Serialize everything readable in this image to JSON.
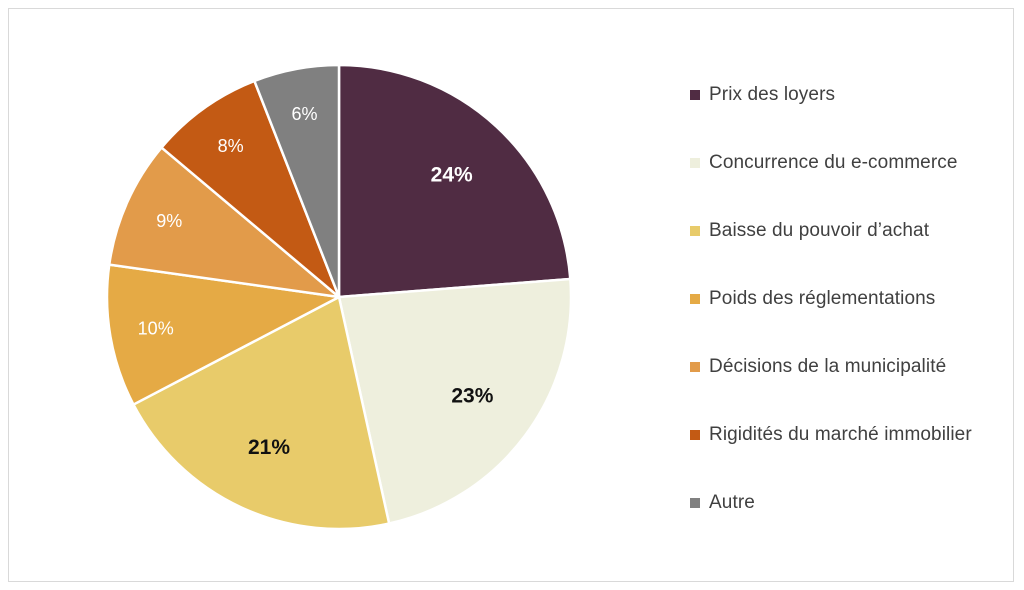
{
  "chart_data": {
    "type": "pie",
    "title": "",
    "slices": [
      {
        "label": "Prix des loyers",
        "value": 24,
        "display": "24%",
        "color": "#502c43",
        "label_color": "#ffffff",
        "bold": true
      },
      {
        "label": "Concurrence du e-commerce",
        "value": 23,
        "display": "23%",
        "color": "#eeefdd",
        "label_color": "#111111",
        "bold": true
      },
      {
        "label": "Baisse du pouvoir d’achat",
        "value": 21,
        "display": "21%",
        "color": "#e8cb6a",
        "label_color": "#111111",
        "bold": true
      },
      {
        "label": "Poids des réglementations",
        "value": 10,
        "display": "10%",
        "color": "#e5aa45",
        "label_color": "#ffffff",
        "bold": false
      },
      {
        "label": "Décisions de la municipalité",
        "value": 9,
        "display": "9%",
        "color": "#e29b4a",
        "label_color": "#ffffff",
        "bold": false
      },
      {
        "label": "Rigidités du marché immobilier",
        "value": 8,
        "display": "8%",
        "color": "#c35a14",
        "label_color": "#ffffff",
        "bold": false
      },
      {
        "label": "Autre",
        "value": 6,
        "display": "6%",
        "color": "#808080",
        "label_color": "#ffffff",
        "bold": false
      }
    ],
    "start_angle": "12 o'clock",
    "direction": "clockwise",
    "legend_position": "right"
  }
}
